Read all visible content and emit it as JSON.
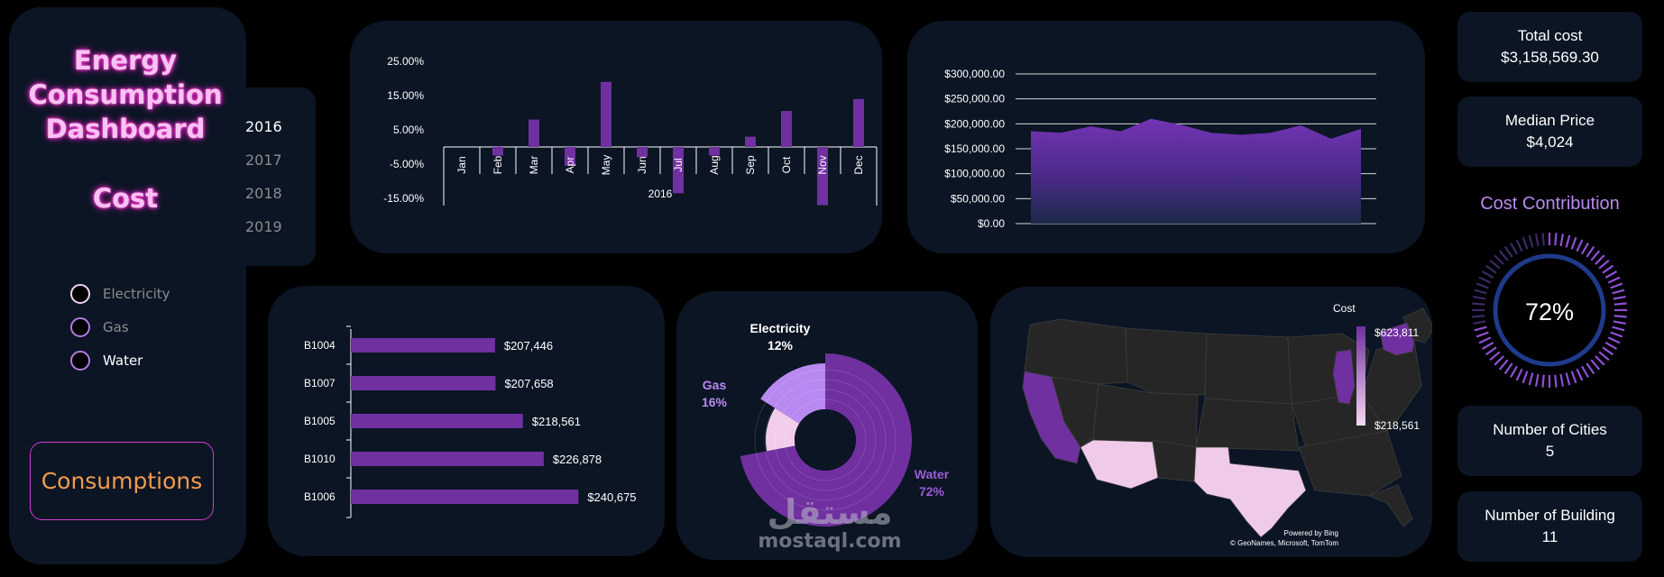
{
  "sidebar": {
    "title_lines": [
      "Energy",
      "Consumption",
      "Dashboard"
    ],
    "subtitle": "Cost",
    "years": [
      "2016",
      "2017",
      "2018",
      "2019"
    ],
    "selected_year": "2016",
    "legend": [
      {
        "label": "Electricity",
        "active": false
      },
      {
        "label": "Gas",
        "active": false
      },
      {
        "label": "Water",
        "active": true
      }
    ],
    "consumptions_button": "Consumptions"
  },
  "colors": {
    "background": "#000000",
    "panel": "#0b1524",
    "accent_purple": "#7030a0",
    "light_purple": "#b889f0",
    "pale_pink": "#f2cdeb",
    "neon_pink": "#ff4fd8",
    "orange_text": "#f49a4c"
  },
  "monthly_change_chart": {
    "chart_data": {
      "type": "bar",
      "categories": [
        "Jan",
        "Feb",
        "Mar",
        "Apr",
        "May",
        "Jun",
        "Jul",
        "Aug",
        "Sep",
        "Oct",
        "Nov",
        "Dec"
      ],
      "values": [
        0,
        -2.5,
        8.0,
        -5.5,
        19.0,
        -3.0,
        -13.5,
        -2.5,
        3.0,
        10.5,
        -17.0,
        14.0
      ],
      "group_label": "2016",
      "yticks": [
        "25.00%",
        "15.00%",
        "5.00%",
        "-5.00%",
        "-15.00%"
      ],
      "ylim": [
        -20,
        25
      ],
      "unit": "%"
    }
  },
  "cost_area_chart": {
    "chart_data": {
      "type": "area",
      "x": [
        1,
        2,
        3,
        4,
        5,
        6,
        7,
        8,
        9,
        10,
        11,
        12
      ],
      "values": [
        185000,
        182000,
        195000,
        185000,
        210000,
        198000,
        182000,
        178000,
        182000,
        197000,
        170000,
        190000
      ],
      "yticks": [
        "$300,000.00",
        "$250,000.00",
        "$200,000.00",
        "$150,000.00",
        "$100,000.00",
        "$50,000.00",
        "$0.00"
      ],
      "ylim": [
        0,
        300000
      ],
      "grid": true
    }
  },
  "building_chart": {
    "chart_data": {
      "type": "bar",
      "orientation": "horizontal",
      "categories": [
        "B1004",
        "B1007",
        "B1005",
        "B1010",
        "B1006"
      ],
      "values": [
        207446,
        207658,
        218561,
        226878,
        240675
      ],
      "labels": [
        "$207,446",
        "$207,658",
        "$218,561",
        "$226,878",
        "$240,675"
      ],
      "xlim": [
        150000,
        242000
      ]
    }
  },
  "contribution_chart": {
    "chart_data": {
      "type": "pie",
      "style": "sunburst",
      "slices": [
        {
          "name": "Water",
          "pct_label": "72%",
          "value": 72,
          "color": "#7030a0"
        },
        {
          "name": "Electricity",
          "pct_label": "12%",
          "value": 12,
          "color": "#f2cdeb"
        },
        {
          "name": "Gas",
          "pct_label": "16%",
          "value": 16,
          "color": "#b889f0"
        }
      ]
    }
  },
  "map": {
    "legend_title": "Cost",
    "legend_max": "$623,811",
    "legend_min": "$218,561",
    "credit_line1": "Powered by Bing",
    "credit_line2": "© GeoNames, Microsoft, TomTom"
  },
  "kpis": {
    "total_cost_label": "Total cost",
    "total_cost_value": "$3,158,569.30",
    "median_price_label": "Median Price",
    "median_price_value": "$4,024",
    "cost_contribution_title": "Cost Contribution",
    "cost_contribution_value": "72%",
    "cost_contribution_fraction": 0.72,
    "cities_label": "Number of Cities",
    "cities_value": "5",
    "buildings_label": "Number of Building",
    "buildings_value": "11"
  },
  "watermark": {
    "arabic": "مستقل",
    "domain": "mostaql.com"
  }
}
